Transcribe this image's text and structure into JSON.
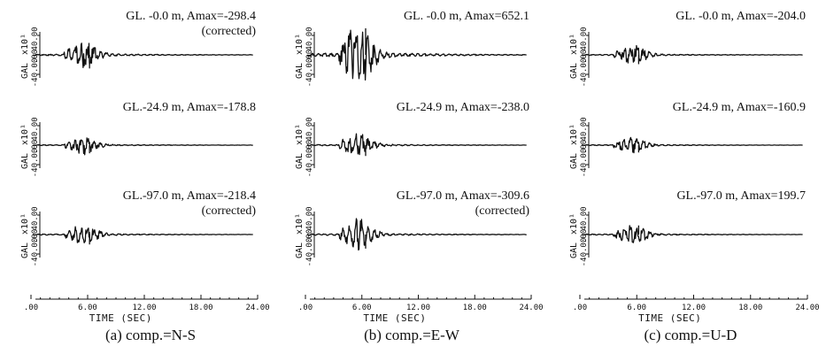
{
  "chart_data": [
    {
      "type": "line",
      "caption": "(a) comp.=N-S",
      "xlabel": "TIME (SEC)",
      "xticks": [
        ".00",
        "6.00",
        "12.00",
        "18.00",
        "24.00"
      ],
      "xlim": [
        0,
        24
      ],
      "ylabel": "GAL",
      "yunit": "x10¹",
      "yticks": [
        "40.00",
        ".00",
        "-40.00"
      ],
      "ylim": [
        -40,
        40
      ],
      "series": [
        {
          "title": "GL. -0.0 m, Amax=-298.4",
          "note": "(corrected)",
          "amax": -298.4
        },
        {
          "title": "GL.-24.9 m, Amax=-178.8",
          "note": "",
          "amax": -178.8
        },
        {
          "title": "GL.-97.0 m, Amax=-218.4",
          "note": "(corrected)",
          "amax": -218.4
        }
      ]
    },
    {
      "type": "line",
      "caption": "(b) comp.=E-W",
      "xlabel": "TIME (SEC)",
      "xticks": [
        ".00",
        "6.00",
        "12.00",
        "18.00",
        "24.00"
      ],
      "xlim": [
        0,
        24
      ],
      "ylabel": "GAL",
      "yunit": "x10¹",
      "yticks": [
        "40.00",
        ".00",
        "-40.00"
      ],
      "ylim": [
        -40,
        40
      ],
      "series": [
        {
          "title": "GL. -0.0 m, Amax=652.1",
          "note": "",
          "amax": 652.1
        },
        {
          "title": "GL.-24.9 m, Amax=-238.0",
          "note": "",
          "amax": -238.0
        },
        {
          "title": "GL.-97.0 m, Amax=-309.6",
          "note": "(corrected)",
          "amax": -309.6
        }
      ]
    },
    {
      "type": "line",
      "caption": "(c) comp.=U-D",
      "xlabel": "TIME (SEC)",
      "xticks": [
        ".00",
        "6.00",
        "12.00",
        "18.00",
        "24.00"
      ],
      "xlim": [
        0,
        24
      ],
      "ylabel": "GAL",
      "yunit": "x10¹",
      "yticks": [
        "40.00",
        ".00",
        "-40.00"
      ],
      "ylim": [
        -40,
        40
      ],
      "series": [
        {
          "title": "GL. -0.0 m, Amax=-204.0",
          "note": "",
          "amax": -204.0
        },
        {
          "title": "GL.-24.9 m, Amax=-160.9",
          "note": "",
          "amax": -160.9
        },
        {
          "title": "GL.-97.0 m, Amax=199.7",
          "note": "",
          "amax": 199.7
        }
      ]
    }
  ],
  "colors": {
    "ink": "#111111",
    "background": "#ffffff"
  }
}
